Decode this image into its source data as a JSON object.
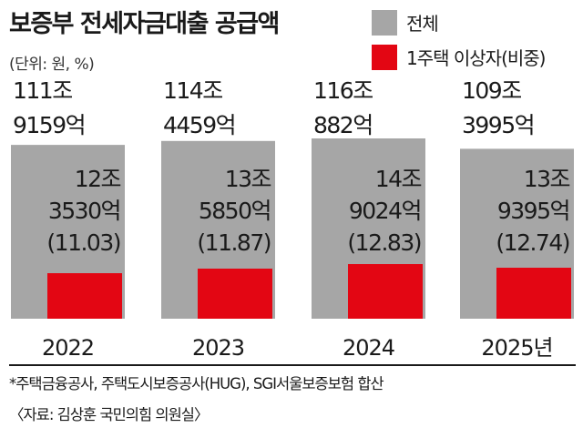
{
  "title": "보증부 전세자금대출 공급액",
  "unit": "(단위: 원, %)",
  "legend": [
    {
      "label": "전체",
      "color": "#a6a6a6"
    },
    {
      "label": "1주택 이상자(비중)",
      "color": "#e30613"
    }
  ],
  "chart_data": {
    "type": "bar",
    "categories": [
      "2022",
      "2023",
      "2024",
      "2025년"
    ],
    "series": [
      {
        "name": "전체",
        "values": [
          1119159,
          1144459,
          1160882,
          1093995
        ],
        "labels": [
          [
            "111조",
            "9159억"
          ],
          [
            "114조",
            "4459억"
          ],
          [
            "116조",
            "882억"
          ],
          [
            "109조",
            "3995억"
          ]
        ]
      },
      {
        "name": "1주택 이상자(비중)",
        "values": [
          123530,
          135850,
          149024,
          139395
        ],
        "labels": [
          [
            "12조",
            "3530억",
            "(11.03)"
          ],
          [
            "13조",
            "5850억",
            "(11.87)"
          ],
          [
            "14조",
            "9024억",
            "(12.83)"
          ],
          [
            "13조",
            "9395억",
            "(12.74)"
          ]
        ]
      }
    ],
    "share": [
      11.03,
      11.87,
      12.83,
      12.74
    ],
    "unit_note": "억 원"
  },
  "colors": {
    "total": "#a6a6a6",
    "sub": "#e30613",
    "text": "#1a1a1a"
  },
  "footnote": "*주택금융공사, 주택도시보증공사(HUG), SGI서울보증보험 합산",
  "source": "〈자료: 김상훈 국민의힘 의원실〉"
}
